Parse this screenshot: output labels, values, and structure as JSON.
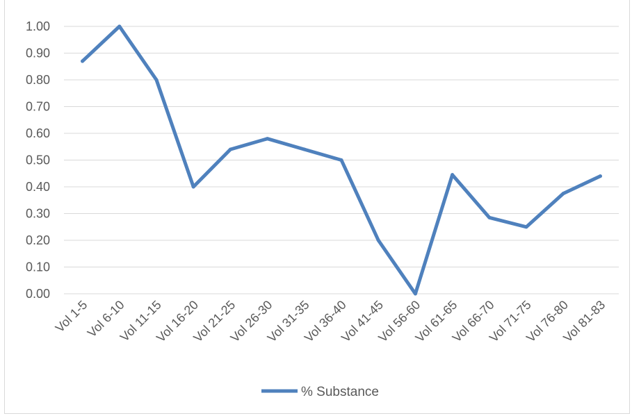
{
  "chart_data": {
    "type": "line",
    "categories": [
      "Vol 1-5",
      "Vol 6-10",
      "Vol 11-15",
      "Vol 16-20",
      "Vol 21-25",
      "Vol 26-30",
      "Vol 31-35",
      "Vol 36-40",
      "Vol 41-45",
      "Vol 56-60",
      "Vol 61-65",
      "Vol 66-70",
      "Vol 71-75",
      "Vol 76-80",
      "Vol 81-83"
    ],
    "series": [
      {
        "name": "% Substance",
        "color": "#4f81bd",
        "values": [
          0.87,
          1.0,
          0.8,
          0.4,
          0.54,
          0.58,
          0.54,
          0.5,
          0.2,
          0.0,
          0.445,
          0.285,
          0.25,
          0.375,
          0.44
        ]
      }
    ],
    "y_ticks": [
      "0.00",
      "0.10",
      "0.20",
      "0.30",
      "0.40",
      "0.50",
      "0.60",
      "0.70",
      "0.80",
      "0.90",
      "1.00"
    ],
    "ylim": [
      0,
      1.0
    ],
    "grid": true,
    "gridline_color": "#d9d9d9",
    "legend_position": "bottom"
  }
}
